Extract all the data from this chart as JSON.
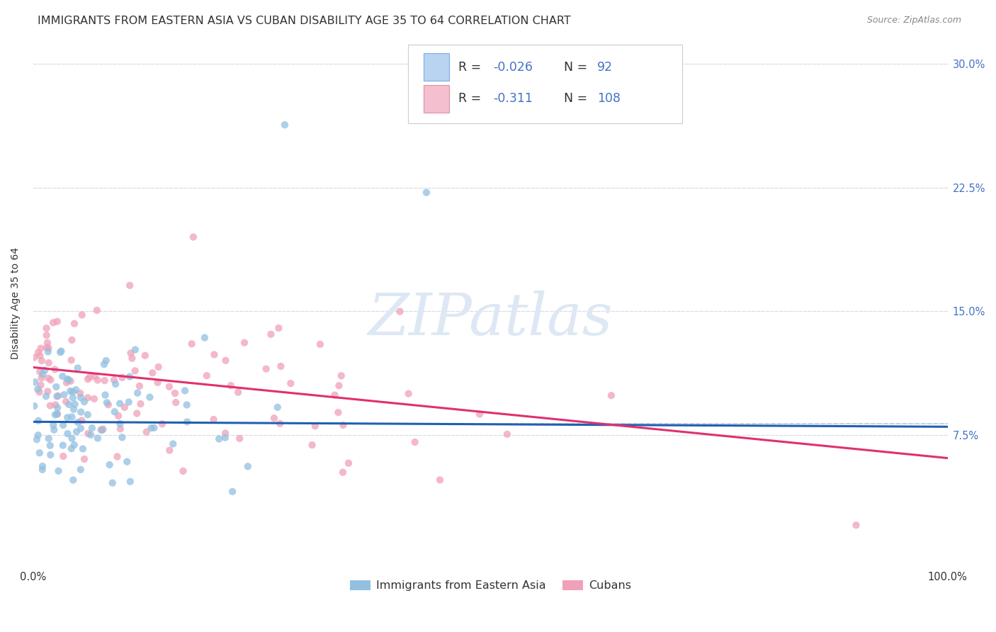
{
  "title": "IMMIGRANTS FROM EASTERN ASIA VS CUBAN DISABILITY AGE 35 TO 64 CORRELATION CHART",
  "source": "Source: ZipAtlas.com",
  "ylabel": "Disability Age 35 to 64",
  "series1_label": "Immigrants from Eastern Asia",
  "series2_label": "Cubans",
  "series1_color": "#92c0e0",
  "series2_color": "#f0a0b8",
  "trend1_color": "#2060b0",
  "trend2_color": "#e03070",
  "dashed_line_color": "#c0c8d8",
  "watermark_color": "#dde8f4",
  "legend_box_color1": "#b8d4f0",
  "legend_box_color2": "#f4c0d0",
  "text_color_blue": "#4472c4",
  "text_color_black": "#333333",
  "text_color_source": "#888888",
  "background_color": "#ffffff",
  "grid_color": "#d8dfe8",
  "xlim": [
    0.0,
    1.0
  ],
  "ylim": [
    -0.005,
    0.315
  ],
  "yticks": [
    0.075,
    0.15,
    0.225,
    0.3
  ],
  "ytick_labels": [
    "7.5%",
    "15.0%",
    "22.5%",
    "30.0%"
  ],
  "xtick_labels": [
    "0.0%",
    "100.0%"
  ],
  "R1": -0.026,
  "N1": 92,
  "R2": -0.311,
  "N2": 108,
  "title_fontsize": 11.5,
  "axis_label_fontsize": 10,
  "tick_fontsize": 10.5,
  "legend_fontsize": 12,
  "watermark_fontsize": 60
}
